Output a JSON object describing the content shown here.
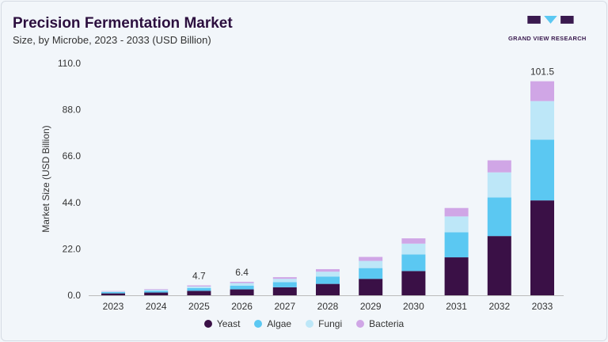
{
  "header": {
    "title": "Precision Fermentation Market",
    "subtitle": "Size, by Microbe, 2023 - 2033 (USD Billion)",
    "logo_text": "GRAND VIEW RESEARCH"
  },
  "chart_data": {
    "type": "bar",
    "stacked": true,
    "title": "Precision Fermentation Market",
    "subtitle": "Size, by Microbe, 2023 - 2033 (USD Billion)",
    "xlabel": "",
    "ylabel": "Market Size (USD Billion)",
    "ylim": [
      0,
      110
    ],
    "yticks": [
      "0.0",
      "22.0",
      "44.0",
      "66.0",
      "88.0",
      "110.0"
    ],
    "grid": false,
    "legend": "bottom",
    "categories": [
      "2023",
      "2024",
      "2025",
      "2026",
      "2027",
      "2028",
      "2029",
      "2030",
      "2031",
      "2032",
      "2033"
    ],
    "series": [
      {
        "name": "Yeast",
        "color": "#3a1046",
        "values": [
          0.9,
          1.3,
          2.1,
          2.8,
          3.8,
          5.4,
          7.8,
          11.5,
          18.0,
          28.1,
          45.0
        ]
      },
      {
        "name": "Algae",
        "color": "#5bc8f2",
        "values": [
          0.6,
          0.8,
          1.3,
          1.8,
          2.4,
          3.5,
          5.1,
          7.9,
          11.9,
          18.3,
          28.8
        ]
      },
      {
        "name": "Fungi",
        "color": "#bde7f8",
        "values": [
          0.3,
          0.5,
          0.8,
          1.2,
          1.6,
          2.3,
          3.4,
          5.1,
          7.5,
          11.9,
          18.3
        ]
      },
      {
        "name": "Bacteria",
        "color": "#d0a6e6",
        "values": [
          0.2,
          0.3,
          0.5,
          0.6,
          0.8,
          1.2,
          1.9,
          2.5,
          4.0,
          5.7,
          9.4
        ]
      }
    ],
    "data_labels": [
      {
        "category": "2025",
        "text": "4.7"
      },
      {
        "category": "2026",
        "text": "6.4"
      },
      {
        "category": "2033",
        "text": "101.5"
      }
    ]
  }
}
